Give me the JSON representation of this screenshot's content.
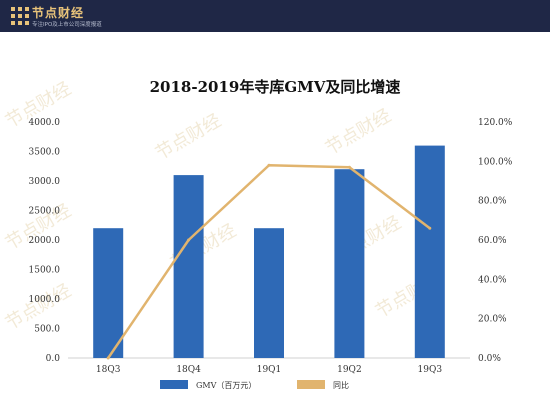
{
  "brand": {
    "name": "节点财经",
    "tagline": "专注IPO及上市公司深度报道",
    "accent": "#e8c37a",
    "bar_bg": "#1f2746"
  },
  "watermark": "节点财经",
  "chart_data": {
    "type": "bar",
    "title": "2018-2019年寺库GMV及同比增速",
    "categories": [
      "18Q3",
      "18Q4",
      "19Q1",
      "19Q2",
      "19Q3"
    ],
    "series": [
      {
        "name": "GMV（百万元）",
        "type": "bar",
        "axis": "left",
        "color": "#2e69b6",
        "values": [
          2200,
          3100,
          2200,
          3200,
          3600
        ]
      },
      {
        "name": "同比",
        "type": "line",
        "axis": "right",
        "color": "#e1b46e",
        "values": [
          0,
          60,
          98,
          97,
          66
        ]
      }
    ],
    "y_left": {
      "min": 0,
      "max": 4000,
      "step": 500,
      "tick_labels": [
        "0.0",
        "500.0",
        "1000.0",
        "1500.0",
        "2000.0",
        "2500.0",
        "3000.0",
        "3500.0",
        "4000.0"
      ]
    },
    "y_right": {
      "min": 0,
      "max": 120,
      "step": 20,
      "tick_labels": [
        "0.0%",
        "20.0%",
        "40.0%",
        "60.0%",
        "80.0%",
        "100.0%",
        "120.0%"
      ]
    },
    "grid": false,
    "legend": "bottom"
  }
}
